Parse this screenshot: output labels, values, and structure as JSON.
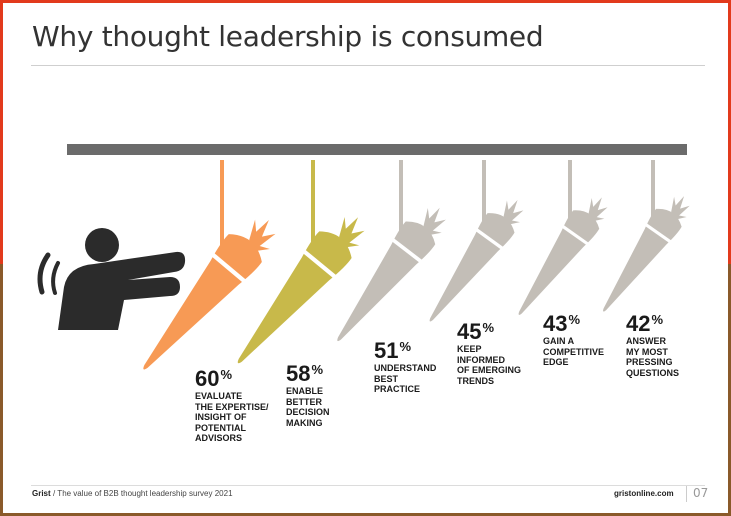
{
  "title": "Why thought leadership is consumed",
  "colors": {
    "highlight_1": "#f79a55",
    "highlight_2": "#c8b94a",
    "neutral": "#c3beb7",
    "bar": "#6b6b6b",
    "figure": "#2b2b2b"
  },
  "chart_data": {
    "type": "bar",
    "title": "Why thought leadership is consumed",
    "categories": [
      "EVALUATE THE EXPERTISE/ INSIGHT OF POTENTIAL ADVISORS",
      "ENABLE BETTER DECISION MAKING",
      "UNDERSTAND BEST PRACTICE",
      "KEEP INFORMED OF EMERGING TRENDS",
      "GAIN A COMPETITIVE EDGE",
      "ANSWER MY MOST PRESSING QUESTIONS"
    ],
    "values": [
      60,
      58,
      51,
      45,
      43,
      42
    ],
    "unit": "%",
    "items": [
      {
        "value": "60",
        "sign": "%",
        "caption": "EVALUATE\nTHE EXPERTISE/\nINSIGHT OF\nPOTENTIAL\nADVISORS",
        "color": "#f79a55"
      },
      {
        "value": "58",
        "sign": "%",
        "caption": "ENABLE\nBETTER\nDECISION\nMAKING",
        "color": "#c8b94a"
      },
      {
        "value": "51",
        "sign": "%",
        "caption": "UNDERSTAND\nBEST\nPRACTICE",
        "color": "#c3beb7"
      },
      {
        "value": "45",
        "sign": "%",
        "caption": "KEEP\nINFORMED\nOF EMERGING\nTRENDS",
        "color": "#c3beb7"
      },
      {
        "value": "43",
        "sign": "%",
        "caption": "GAIN A\nCOMPETITIVE\nEDGE",
        "color": "#c3beb7"
      },
      {
        "value": "42",
        "sign": "%",
        "caption": "ANSWER\nMY MOST\nPRESSING\nQUESTIONS",
        "color": "#c3beb7"
      }
    ]
  },
  "footer": {
    "brand": "Grist",
    "text": "/ The value of B2B thought leadership survey 2021",
    "url": "gristonline.com",
    "page": "07"
  }
}
